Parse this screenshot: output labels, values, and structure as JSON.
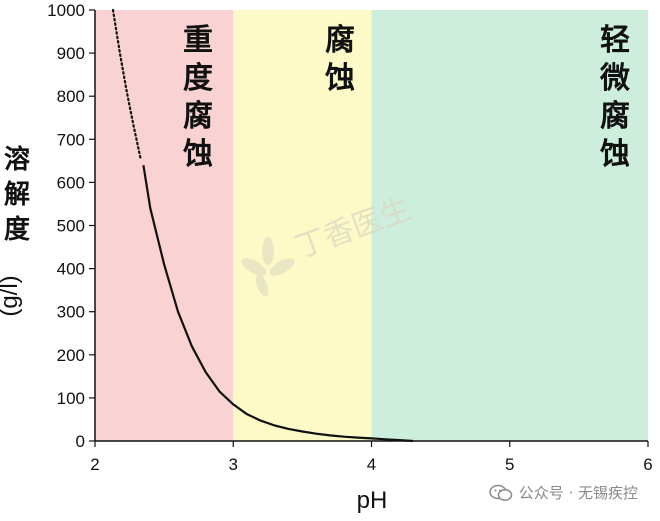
{
  "chart_data": {
    "type": "line",
    "xlabel": "pH",
    "ylabel_chars": [
      "溶",
      "解",
      "度"
    ],
    "ylabel_unit": "(g/l)",
    "xlim": [
      2,
      6
    ],
    "ylim": [
      0,
      1000
    ],
    "x_ticks": [
      2,
      3,
      4,
      5,
      6
    ],
    "y_ticks": [
      0,
      100,
      200,
      300,
      400,
      500,
      600,
      700,
      800,
      900,
      1000
    ],
    "zones": [
      {
        "label_chars": [
          "重",
          "度",
          "腐",
          "蚀"
        ],
        "x_range": [
          2,
          3
        ],
        "color": "#f9d3d3"
      },
      {
        "label_chars": [
          "腐",
          "蚀"
        ],
        "x_range": [
          3,
          4
        ],
        "color": "#fdfac8"
      },
      {
        "label_chars": [
          "轻",
          "微",
          "腐",
          "蚀"
        ],
        "x_range": [
          4,
          6
        ],
        "color": "#cdeedd"
      }
    ],
    "curve": {
      "color": "#111111",
      "dotted_segment": {
        "x": [
          2.13,
          2.18,
          2.23,
          2.28,
          2.33
        ],
        "y": [
          1000,
          900,
          810,
          730,
          655
        ]
      },
      "solid_segment": {
        "x": [
          2.35,
          2.4,
          2.5,
          2.6,
          2.7,
          2.8,
          2.9,
          3.0,
          3.1,
          3.2,
          3.3,
          3.4,
          3.5,
          3.6,
          3.7,
          3.8,
          3.9,
          4.0,
          4.1,
          4.2,
          4.3
        ],
        "y": [
          640,
          540,
          410,
          300,
          220,
          160,
          115,
          85,
          62,
          47,
          36,
          28,
          22,
          17,
          13,
          10,
          8,
          6,
          4,
          2,
          0
        ]
      }
    }
  },
  "watermark": "丁香医生",
  "credit": {
    "icon": "wechat-icon",
    "text": "公众号 · 无锡疾控"
  }
}
